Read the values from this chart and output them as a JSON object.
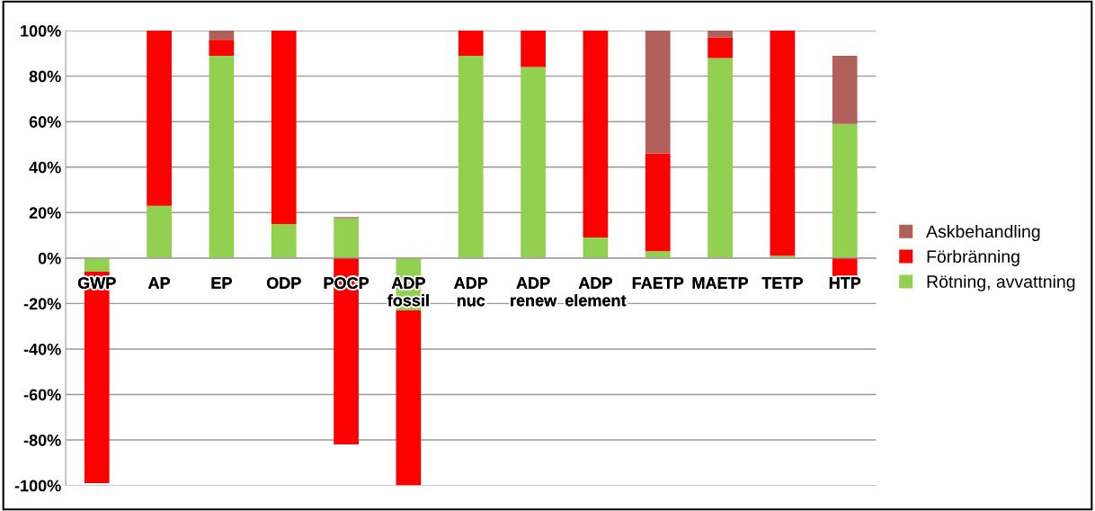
{
  "chart_data": {
    "type": "bar",
    "stacked": true,
    "categories": [
      "GWP",
      "AP",
      "EP",
      "ODP",
      "POCP",
      "ADP\nfossil",
      "ADP\nnuc",
      "ADP\nrenew",
      "ADP\nelement",
      "FAETP",
      "MAETP",
      "TETP",
      "HTP"
    ],
    "series": [
      {
        "name": "Rötning, avvattning",
        "color": "#92d050",
        "values": [
          -6,
          23,
          89,
          15,
          17.5,
          -23,
          89,
          84,
          9,
          3,
          88,
          1,
          59
        ]
      },
      {
        "name": "Förbränning",
        "color": "#ff0000",
        "values": [
          -93,
          77,
          7,
          85,
          -82,
          -77,
          11,
          16,
          91,
          43,
          9,
          99,
          -8
        ]
      },
      {
        "name": "Askbehandling",
        "color": "#b0605a",
        "values": [
          0,
          0,
          4,
          0,
          0.5,
          0,
          0,
          0,
          0,
          54,
          3,
          0,
          30
        ]
      }
    ],
    "ylim": [
      -100,
      100
    ],
    "yticks": [
      {
        "value": -100,
        "label": "-100%"
      },
      {
        "value": -80,
        "label": "-80%"
      },
      {
        "value": -60,
        "label": "-60%"
      },
      {
        "value": -40,
        "label": "-40%"
      },
      {
        "value": -20,
        "label": "-20%"
      },
      {
        "value": 0,
        "label": "0%"
      },
      {
        "value": 20,
        "label": "20%"
      },
      {
        "value": 40,
        "label": "40%"
      },
      {
        "value": 60,
        "label": "60%"
      },
      {
        "value": 80,
        "label": "80%"
      },
      {
        "value": 100,
        "label": "100%"
      }
    ],
    "grid": "y",
    "legend": "right"
  }
}
